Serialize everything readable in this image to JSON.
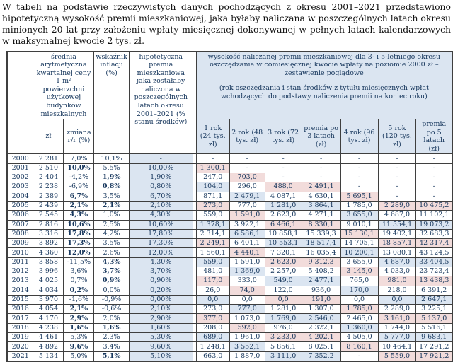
{
  "intro": "W tabeli na podstawie rzeczywistych danych pochodzących z okresu 2001–2021 przedstawiono hipotetyczną wysokość premii mieszkaniowej, jaka byłaby naliczana w poszczególnych latach okresu minionych 20 lat przy założeniu wpłaty miesięcznej dokonywanej w pełnych latach kalendarzowych w maksymalnej kwocie 2 tys. zł.",
  "table": {
    "header": {
      "price": "średnia arytmetyczna kwartalnej ceny 1 m² powierzchni użytkowej budynków mieszkalnych",
      "price_sub_zl": "zł",
      "price_sub_change": "zmiana r/r (%)",
      "inflation": "wskaźnik inflacji (%)",
      "premium": "hipotetyczna premia mieszkaniowa jaka zostałaby naliczona w poszczególnych latach okresu 2001–2021 (% stanu środków)",
      "right_title": "wysokość naliczanej premii mieszkaniowej dla 3- i 5-letniego okresu oszczędzania w comiesięcznej kwocie wpłaty na poziomie 2000 zł – zestawienie poglądowe",
      "right_subtitle": "(rok oszczędzania i stan środków z tytułu miesięcznych wpłat wchodzących do podstawy naliczenia premii na koniec roku)",
      "right_cols": [
        "1 rok (24 tys. zł)",
        "2 rok (48 tys. zł)",
        "3 rok (72 tys. zł)",
        "premia po 3 latach (zł)",
        "4 rok (96 tys. zł)",
        "5 rok (120 tys. zł)",
        "premia po 5 latach (zł)"
      ]
    },
    "legend_colors": {
      "pink": "#f2dcdb",
      "blue": "#dbe5f1",
      "text": "#17375d"
    },
    "rows": [
      {
        "y": "2000",
        "zl": "2 281",
        "ch": "7,0%",
        "chb": false,
        "inf": "10,1%",
        "infb": false,
        "pr": "-",
        "c": [
          [
            "-",
            "w"
          ],
          [
            "-",
            "w"
          ],
          [
            "-",
            "w"
          ],
          [
            "-",
            "w"
          ],
          [
            "-",
            "w"
          ],
          [
            "-",
            "w"
          ],
          [
            "-",
            "w"
          ]
        ]
      },
      {
        "y": "2001",
        "zl": "2 510",
        "ch": "10,0%",
        "chb": true,
        "inf": "5,5%",
        "infb": false,
        "pr": "10,00%",
        "c": [
          [
            "1 300,1",
            "p"
          ],
          [
            "-",
            "w"
          ],
          [
            "-",
            "w"
          ],
          [
            "-",
            "w"
          ],
          [
            "-",
            "w"
          ],
          [
            "-",
            "w"
          ],
          [
            "-",
            "w"
          ]
        ]
      },
      {
        "y": "2002",
        "zl": "2 404",
        "ch": "-4,2%",
        "chb": false,
        "inf": "1,9%",
        "infb": true,
        "pr": "1,90%",
        "c": [
          [
            "247,0",
            "w"
          ],
          [
            "703,0",
            "p"
          ],
          [
            "-",
            "w"
          ],
          [
            "-",
            "w"
          ],
          [
            "-",
            "w"
          ],
          [
            "-",
            "w"
          ],
          [
            "-",
            "w"
          ]
        ]
      },
      {
        "y": "2003",
        "zl": "2 238",
        "ch": "-6,9%",
        "chb": false,
        "inf": "0,8%",
        "infb": true,
        "pr": "0,80%",
        "c": [
          [
            "104,0",
            "b"
          ],
          [
            "296,0",
            "w"
          ],
          [
            "488,0",
            "p"
          ],
          [
            "2 491,1",
            "p"
          ],
          [
            "-",
            "w"
          ],
          [
            "-",
            "w"
          ],
          [
            "-",
            "w"
          ]
        ]
      },
      {
        "y": "2004",
        "zl": "2 389",
        "ch": "6,7%",
        "chb": true,
        "inf": "3,5%",
        "infb": false,
        "pr": "6,70%",
        "c": [
          [
            "871,1",
            "w"
          ],
          [
            "2 479,1",
            "b"
          ],
          [
            "4 087,1",
            "w"
          ],
          [
            "4 630,1",
            "w"
          ],
          [
            "5 695,1",
            "p"
          ],
          [
            "-",
            "w"
          ],
          [
            "-",
            "w"
          ]
        ]
      },
      {
        "y": "2005",
        "zl": "2 439",
        "ch": "2,1%",
        "chb": true,
        "inf": "2,1%",
        "infb": true,
        "pr": "2,10%",
        "c": [
          [
            "273,0",
            "p"
          ],
          [
            "777,0",
            "w"
          ],
          [
            "1 281,0",
            "b"
          ],
          [
            "3 864,1",
            "b"
          ],
          [
            "1 785,0",
            "w"
          ],
          [
            "2 289,0",
            "p"
          ],
          [
            "10 475,2",
            "p"
          ]
        ]
      },
      {
        "y": "2006",
        "zl": "2 545",
        "ch": "4,3%",
        "chb": true,
        "inf": "1,0%",
        "infb": false,
        "pr": "4,30%",
        "c": [
          [
            "559,0",
            "w"
          ],
          [
            "1 591,0",
            "p"
          ],
          [
            "2 623,0",
            "w"
          ],
          [
            "4 271,1",
            "w"
          ],
          [
            "3 655,0",
            "b"
          ],
          [
            "4 687,0",
            "w"
          ],
          [
            "11 102,1",
            "w"
          ]
        ]
      },
      {
        "y": "2007",
        "zl": "2 816",
        "ch": "10,6%",
        "chb": true,
        "inf": "2,5%",
        "infb": false,
        "pr": "10,60%",
        "c": [
          [
            "1 378,1",
            "b"
          ],
          [
            "3 922,1",
            "w"
          ],
          [
            "6 466,1",
            "p"
          ],
          [
            "8 330,1",
            "p"
          ],
          [
            "9 010,1",
            "w"
          ],
          [
            "11 554,1",
            "b"
          ],
          [
            "19 073,2",
            "b"
          ]
        ]
      },
      {
        "y": "2008",
        "zl": "3 316",
        "ch": "17,8%",
        "chb": true,
        "inf": "4,2%",
        "infb": false,
        "pr": "17,80%",
        "c": [
          [
            "2 314,1",
            "w"
          ],
          [
            "6 586,1",
            "b"
          ],
          [
            "10 858,1",
            "w"
          ],
          [
            "15 339,3",
            "w"
          ],
          [
            "15 130,1",
            "p"
          ],
          [
            "19 402,1",
            "w"
          ],
          [
            "32 683,3",
            "w"
          ]
        ]
      },
      {
        "y": "2009",
        "zl": "3 892",
        "ch": "17,3%",
        "chb": true,
        "inf": "3,5%",
        "infb": false,
        "pr": "17,30%",
        "c": [
          [
            "2 249,1",
            "p"
          ],
          [
            "6 401,1",
            "w"
          ],
          [
            "10 553,1",
            "b"
          ],
          [
            "18 517,4",
            "b"
          ],
          [
            "14 705,1",
            "w"
          ],
          [
            "18 857,1",
            "p"
          ],
          [
            "42 317,4",
            "p"
          ]
        ]
      },
      {
        "y": "2010",
        "zl": "4 360",
        "ch": "12,0%",
        "chb": true,
        "inf": "2,6%",
        "infb": false,
        "pr": "12,00%",
        "c": [
          [
            "1 560,1",
            "w"
          ],
          [
            "4 440,1",
            "p"
          ],
          [
            "7 320,1",
            "w"
          ],
          [
            "16 035,4",
            "w"
          ],
          [
            "10 200,1",
            "b"
          ],
          [
            "13 080,1",
            "w"
          ],
          [
            "43 124,5",
            "w"
          ]
        ]
      },
      {
        "y": "2011",
        "zl": "3 858",
        "ch": "-11,5%",
        "chb": false,
        "inf": "4,3%",
        "infb": true,
        "pr": "4,30%",
        "c": [
          [
            "559,0",
            "b"
          ],
          [
            "1 591,0",
            "w"
          ],
          [
            "2 623,0",
            "p"
          ],
          [
            "9 312,3",
            "p"
          ],
          [
            "3 655,0",
            "w"
          ],
          [
            "4 687,0",
            "b"
          ],
          [
            "33 404,5",
            "b"
          ]
        ]
      },
      {
        "y": "2012",
        "zl": "3 996",
        "ch": "3,6%",
        "chb": false,
        "inf": "3,7%",
        "infb": true,
        "pr": "3,70%",
        "c": [
          [
            "481,0",
            "w"
          ],
          [
            "1 369,0",
            "b"
          ],
          [
            "2 257,0",
            "w"
          ],
          [
            "5 408,2",
            "w"
          ],
          [
            "3 145,0",
            "p"
          ],
          [
            "4 033,0",
            "w"
          ],
          [
            "23 723,4",
            "w"
          ]
        ]
      },
      {
        "y": "2013",
        "zl": "4 025",
        "ch": "0,7%",
        "chb": false,
        "inf": "0,9%",
        "infb": true,
        "pr": "0,90%",
        "c": [
          [
            "117,0",
            "p"
          ],
          [
            "333,0",
            "w"
          ],
          [
            "549,0",
            "b"
          ],
          [
            "2 477,1",
            "b"
          ],
          [
            "765,0",
            "w"
          ],
          [
            "981,0",
            "p"
          ],
          [
            "13 438,3",
            "p"
          ]
        ]
      },
      {
        "y": "2014",
        "zl": "4 034",
        "ch": "0,2%",
        "chb": true,
        "inf": "0,0%",
        "infb": false,
        "pr": "0,20%",
        "c": [
          [
            "26,0",
            "w"
          ],
          [
            "74,0",
            "p"
          ],
          [
            "122,0",
            "w"
          ],
          [
            "936,0",
            "w"
          ],
          [
            "170,0",
            "b"
          ],
          [
            "218,0",
            "w"
          ],
          [
            "6 391,2",
            "w"
          ]
        ]
      },
      {
        "y": "2015",
        "zl": "3 970",
        "ch": "-1,6%",
        "chb": false,
        "inf": "-0,9%",
        "infb": false,
        "pr": "0,00%",
        "c": [
          [
            "0,0",
            "b"
          ],
          [
            "0,0",
            "w"
          ],
          [
            "0,0",
            "p"
          ],
          [
            "191,0",
            "p"
          ],
          [
            "0,0",
            "w"
          ],
          [
            "0,0",
            "b"
          ],
          [
            "2 647,1",
            "b"
          ]
        ]
      },
      {
        "y": "2016",
        "zl": "4 054",
        "ch": "2,1%",
        "chb": true,
        "inf": "-0,6%",
        "infb": false,
        "pr": "2,10%",
        "c": [
          [
            "273,0",
            "w"
          ],
          [
            "777,0",
            "b"
          ],
          [
            "1 281,0",
            "w"
          ],
          [
            "1 307,0",
            "w"
          ],
          [
            "1 785,0",
            "p"
          ],
          [
            "2 289,0",
            "w"
          ],
          [
            "3 225,1",
            "w"
          ]
        ]
      },
      {
        "y": "2017",
        "zl": "4 170",
        "ch": "2,9%",
        "chb": true,
        "inf": "2,0%",
        "infb": false,
        "pr": "2,90%",
        "c": [
          [
            "377,0",
            "p"
          ],
          [
            "1 073,0",
            "w"
          ],
          [
            "1 769,0",
            "b"
          ],
          [
            "2 546,0",
            "b"
          ],
          [
            "2 465,0",
            "w"
          ],
          [
            "3 161,0",
            "p"
          ],
          [
            "5 137,0",
            "p"
          ]
        ]
      },
      {
        "y": "2018",
        "zl": "4 238",
        "ch": "1,6%",
        "chb": true,
        "inf": "1,6%",
        "infb": true,
        "pr": "1,60%",
        "c": [
          [
            "208,0",
            "w"
          ],
          [
            "592,0",
            "p"
          ],
          [
            "976,0",
            "w"
          ],
          [
            "2 322,1",
            "w"
          ],
          [
            "1 360,0",
            "b"
          ],
          [
            "1 744,0",
            "w"
          ],
          [
            "5 516,1",
            "w"
          ]
        ]
      },
      {
        "y": "2019",
        "zl": "4 461",
        "ch": "5,3%",
        "chb": false,
        "inf": "2,3%",
        "infb": false,
        "pr": "5,30%",
        "c": [
          [
            "689,0",
            "b"
          ],
          [
            "1 961,0",
            "w"
          ],
          [
            "3 233,0",
            "p"
          ],
          [
            "4 202,1",
            "p"
          ],
          [
            "4 505,0",
            "w"
          ],
          [
            "5 777,0",
            "b"
          ],
          [
            "9 683,1",
            "b"
          ]
        ]
      },
      {
        "y": "2020",
        "zl": "4 892",
        "ch": "9,6%",
        "chb": true,
        "inf": "3,4%",
        "infb": false,
        "pr": "9,60%",
        "c": [
          [
            "1 248,1",
            "w"
          ],
          [
            "3 552,1",
            "b"
          ],
          [
            "5 856,1",
            "w"
          ],
          [
            "8 025,1",
            "w"
          ],
          [
            "8 160,1",
            "p"
          ],
          [
            "10 464,1",
            "w"
          ],
          [
            "17 291,2",
            "w"
          ]
        ]
      },
      {
        "y": "2021",
        "zl": "5 134",
        "ch": "5,0%",
        "chb": false,
        "inf": "5,1%",
        "infb": true,
        "pr": "5,10%",
        "c": [
          [
            "663,0",
            "w"
          ],
          [
            "1 887,0",
            "w"
          ],
          [
            "3 111,0",
            "b"
          ],
          [
            "7 352,2",
            "b"
          ],
          [
            "-",
            "w"
          ],
          [
            "5 559,0",
            "p"
          ],
          [
            "17 921,2",
            "p"
          ]
        ]
      }
    ]
  }
}
